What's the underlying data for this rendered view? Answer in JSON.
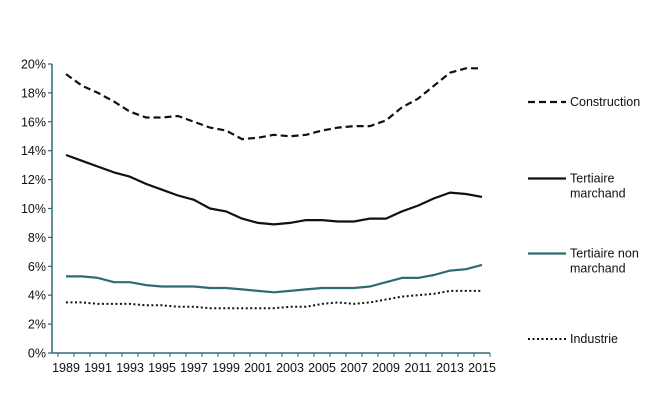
{
  "chart_data": {
    "type": "line",
    "title": "",
    "xlabel": "",
    "ylabel": "",
    "x": [
      1989,
      1990,
      1991,
      1992,
      1993,
      1994,
      1995,
      1996,
      1997,
      1998,
      1999,
      2000,
      2001,
      2002,
      2003,
      2004,
      2005,
      2006,
      2007,
      2008,
      2009,
      2010,
      2011,
      2012,
      2013,
      2014,
      2015
    ],
    "x_tick_labels": [
      "1989",
      "1991",
      "1993",
      "1995",
      "1997",
      "1999",
      "2001",
      "2003",
      "2005",
      "2007",
      "2009",
      "2011",
      "2013",
      "2015"
    ],
    "y_tick_labels": [
      "0%",
      "2%",
      "4%",
      "6%",
      "8%",
      "10%",
      "12%",
      "14%",
      "16%",
      "18%",
      "20%"
    ],
    "ylim": [
      0,
      20
    ],
    "grid": false,
    "legend_placement": "right",
    "series": [
      {
        "name": "Construction",
        "style": "dashed",
        "color": "#111111",
        "values": [
          19.3,
          18.5,
          18.0,
          17.4,
          16.7,
          16.3,
          16.3,
          16.4,
          16.0,
          15.6,
          15.4,
          14.8,
          14.9,
          15.1,
          15.0,
          15.1,
          15.4,
          15.6,
          15.7,
          15.7,
          16.1,
          17.0,
          17.6,
          18.5,
          19.4,
          19.7,
          19.7
        ]
      },
      {
        "name": "Tertiaire marchand",
        "style": "solid",
        "color": "#111111",
        "values": [
          13.7,
          13.3,
          12.9,
          12.5,
          12.2,
          11.7,
          11.3,
          10.9,
          10.6,
          10.0,
          9.8,
          9.3,
          9.0,
          8.9,
          9.0,
          9.2,
          9.2,
          9.1,
          9.1,
          9.3,
          9.3,
          9.8,
          10.2,
          10.7,
          11.1,
          11.0,
          10.8
        ]
      },
      {
        "name": "Tertiaire non marchand",
        "style": "solid",
        "color": "#2e6b72",
        "values": [
          5.3,
          5.3,
          5.2,
          4.9,
          4.9,
          4.7,
          4.6,
          4.6,
          4.6,
          4.5,
          4.5,
          4.4,
          4.3,
          4.2,
          4.3,
          4.4,
          4.5,
          4.5,
          4.5,
          4.6,
          4.9,
          5.2,
          5.2,
          5.4,
          5.7,
          5.8,
          6.1
        ]
      },
      {
        "name": "Industrie",
        "style": "dotted",
        "color": "#111111",
        "values": [
          3.5,
          3.5,
          3.4,
          3.4,
          3.4,
          3.3,
          3.3,
          3.2,
          3.2,
          3.1,
          3.1,
          3.1,
          3.1,
          3.1,
          3.2,
          3.2,
          3.4,
          3.5,
          3.4,
          3.5,
          3.7,
          3.9,
          4.0,
          4.1,
          4.3,
          4.3,
          4.3
        ]
      }
    ],
    "legend": [
      {
        "lines": [
          "Construction"
        ]
      },
      {
        "lines": [
          "Tertiaire",
          "marchand"
        ]
      },
      {
        "lines": [
          "Tertiaire non",
          "marchand"
        ]
      },
      {
        "lines": [
          "Industrie"
        ]
      }
    ],
    "axis_color": "#2e6b72"
  }
}
